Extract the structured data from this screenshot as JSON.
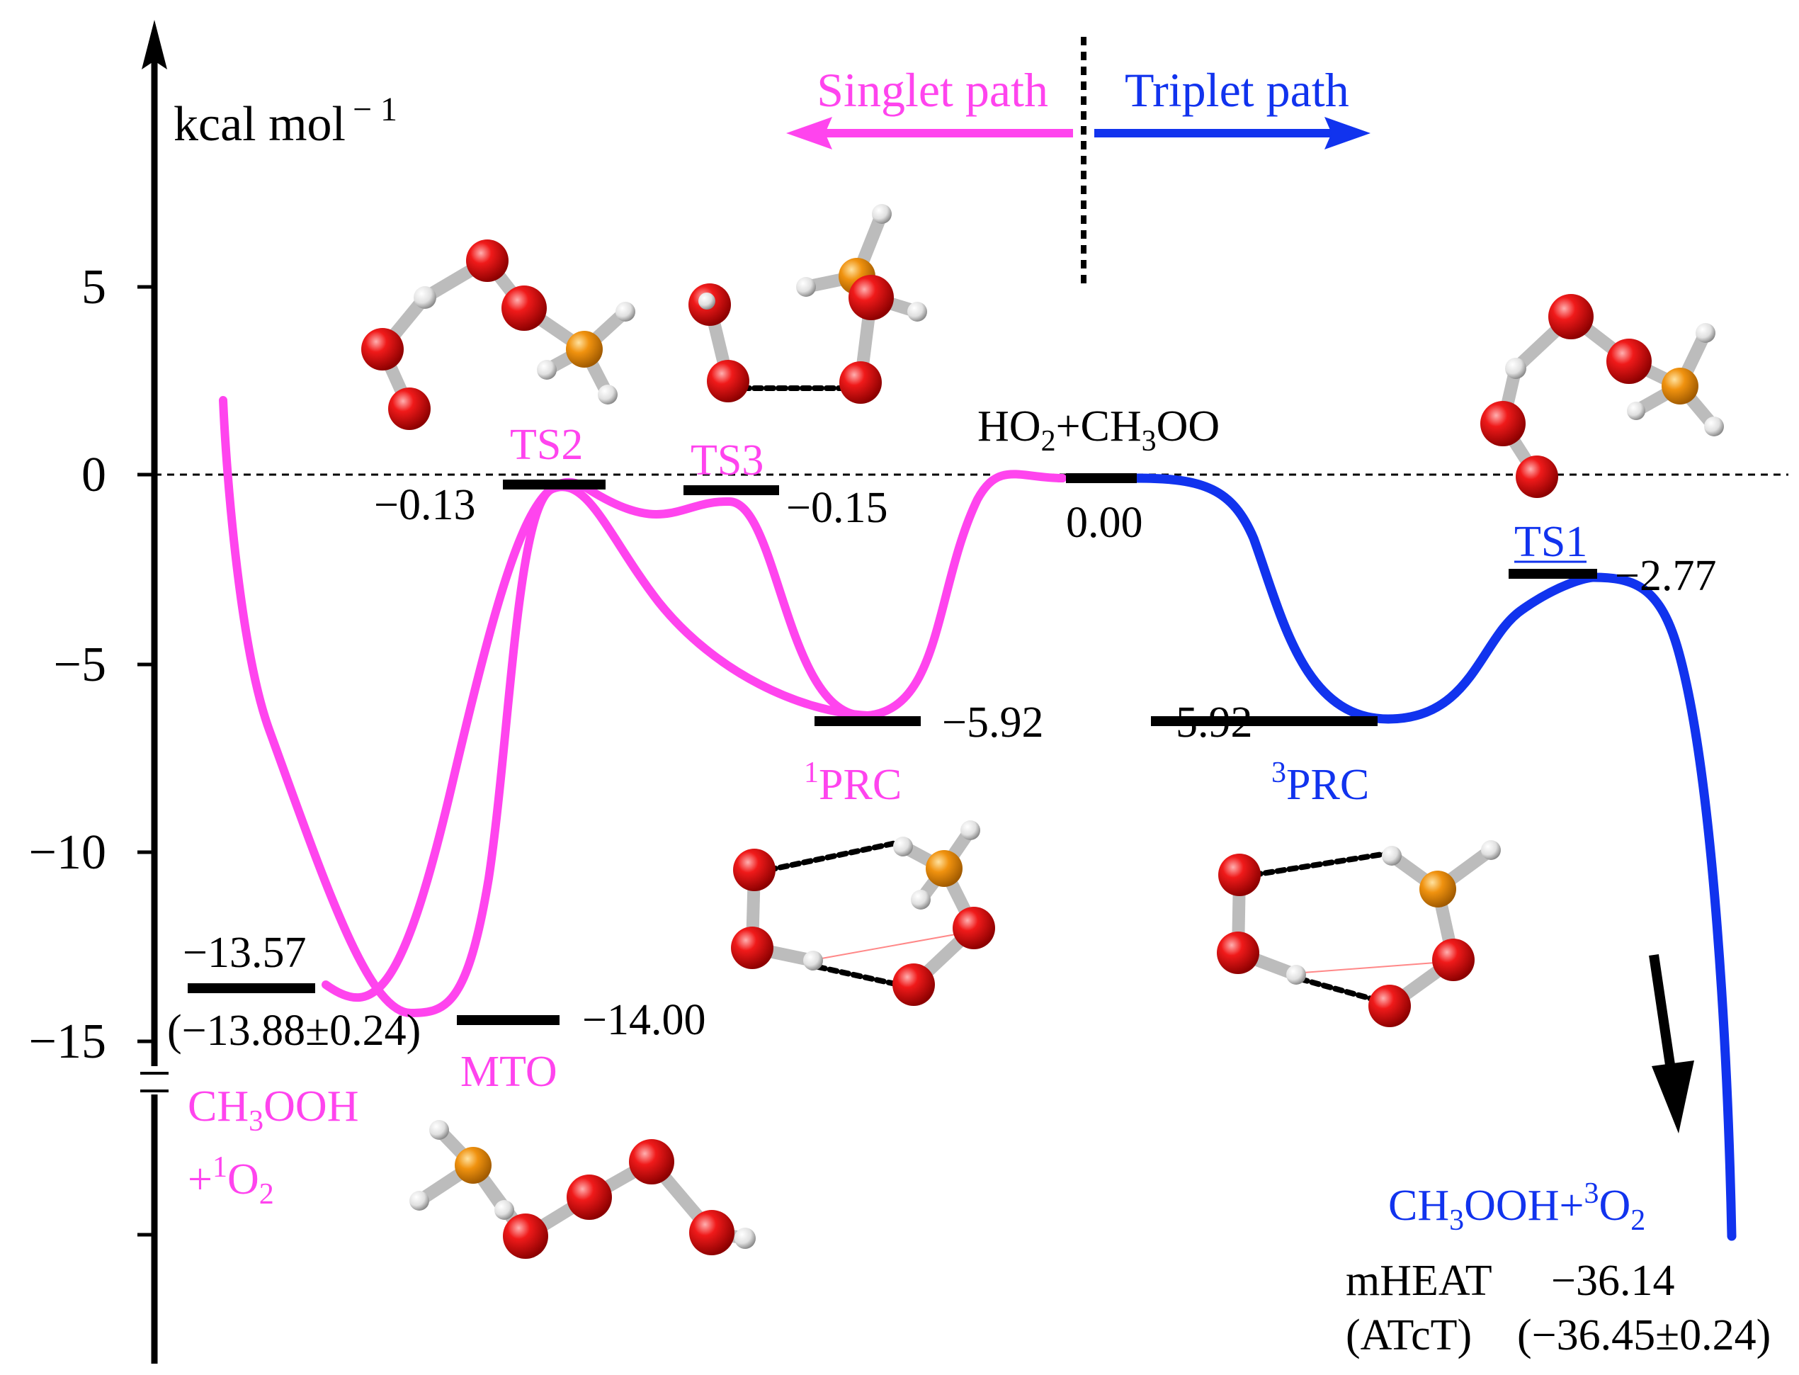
{
  "axis": {
    "unit_label": "kcal mol",
    "unit_exponent": "− 1",
    "ticks": [
      {
        "value": 5,
        "label": "5"
      },
      {
        "value": 0,
        "label": "0"
      },
      {
        "value": -5,
        "label": "−5"
      },
      {
        "value": -10,
        "label": "−10"
      },
      {
        "value": -15,
        "label": "−15"
      }
    ]
  },
  "legend": {
    "singlet_label": "Singlet path",
    "triplet_label": "Triplet path"
  },
  "colors": {
    "singlet": "#ff44ee",
    "triplet": "#1133ee",
    "oxygen": "#e8141e",
    "carbon": "#f0920f",
    "hydrogen": "#eeeeee"
  },
  "species": {
    "reactant": {
      "label_main": "HO",
      "label_sub": "2",
      "label_mid": "+CH",
      "label_sub2": "3",
      "label_end": "OO",
      "energy": "0.00"
    },
    "ts2": {
      "label": "TS2",
      "energy": "−0.13"
    },
    "ts3": {
      "label": "TS3",
      "energy": "−0.15"
    },
    "prc1": {
      "label_sup": "1",
      "label": "PRC",
      "energy": "−5.92"
    },
    "prc3": {
      "label_sup": "3",
      "label": "PRC",
      "energy": "−5.92"
    },
    "ts1": {
      "label": "TS1",
      "energy": "−2.77"
    },
    "mto": {
      "label": "MTO",
      "energy": "−14.00"
    },
    "singlet_product": {
      "energy": "−13.57",
      "reference": "(−13.88±0.24)",
      "line1_main": "CH",
      "line1_sub": "3",
      "line1_end": "OOH",
      "line2_main": "+",
      "line2_sup": "1",
      "line2_o": "O",
      "line2_sub": "2"
    },
    "triplet_product": {
      "label_main": "CH",
      "label_sub": "3",
      "label_mid": "OOH+",
      "label_sup": "3",
      "label_o": "O",
      "label_sub2": "2",
      "method1": "mHEAT",
      "energy1": "−36.14",
      "method2": "(ATcT)",
      "energy2": "(−36.45±0.24)"
    }
  }
}
